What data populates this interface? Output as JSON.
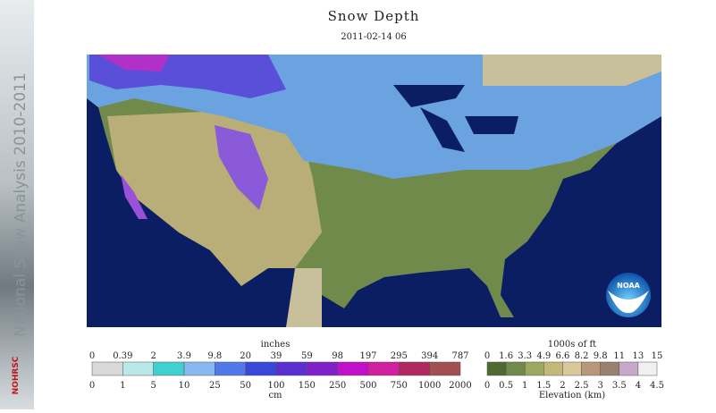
{
  "banner": {
    "title": "National Snow Analysis 2010-2011",
    "logo": "NOHRSC"
  },
  "header": {
    "title": "Snow Depth",
    "date": "2011-02-14 06"
  },
  "map": {
    "badge": "NOAA"
  },
  "snow_legend": {
    "top_unit": "inches",
    "bottom_unit": "cm",
    "top_labels": [
      "0",
      "0.39",
      "2",
      "3.9",
      "9.8",
      "20",
      "39",
      "59",
      "98",
      "197",
      "295",
      "394",
      "787"
    ],
    "bottom_labels": [
      "0",
      "1",
      "5",
      "10",
      "25",
      "50",
      "100",
      "150",
      "250",
      "500",
      "750",
      "1000",
      "2000"
    ]
  },
  "elevation_legend": {
    "top_unit": "1000s of ft",
    "bottom_unit": "Elevation (km)",
    "top_labels": [
      "0",
      "1.6",
      "3.3",
      "4.9",
      "6.6",
      "8.2",
      "9.8",
      "11",
      "13",
      "15"
    ],
    "bottom_labels": [
      "0",
      "0.5",
      "1",
      "1.5",
      "2",
      "2.5",
      "3",
      "3.5",
      "4",
      "4.5"
    ]
  }
}
